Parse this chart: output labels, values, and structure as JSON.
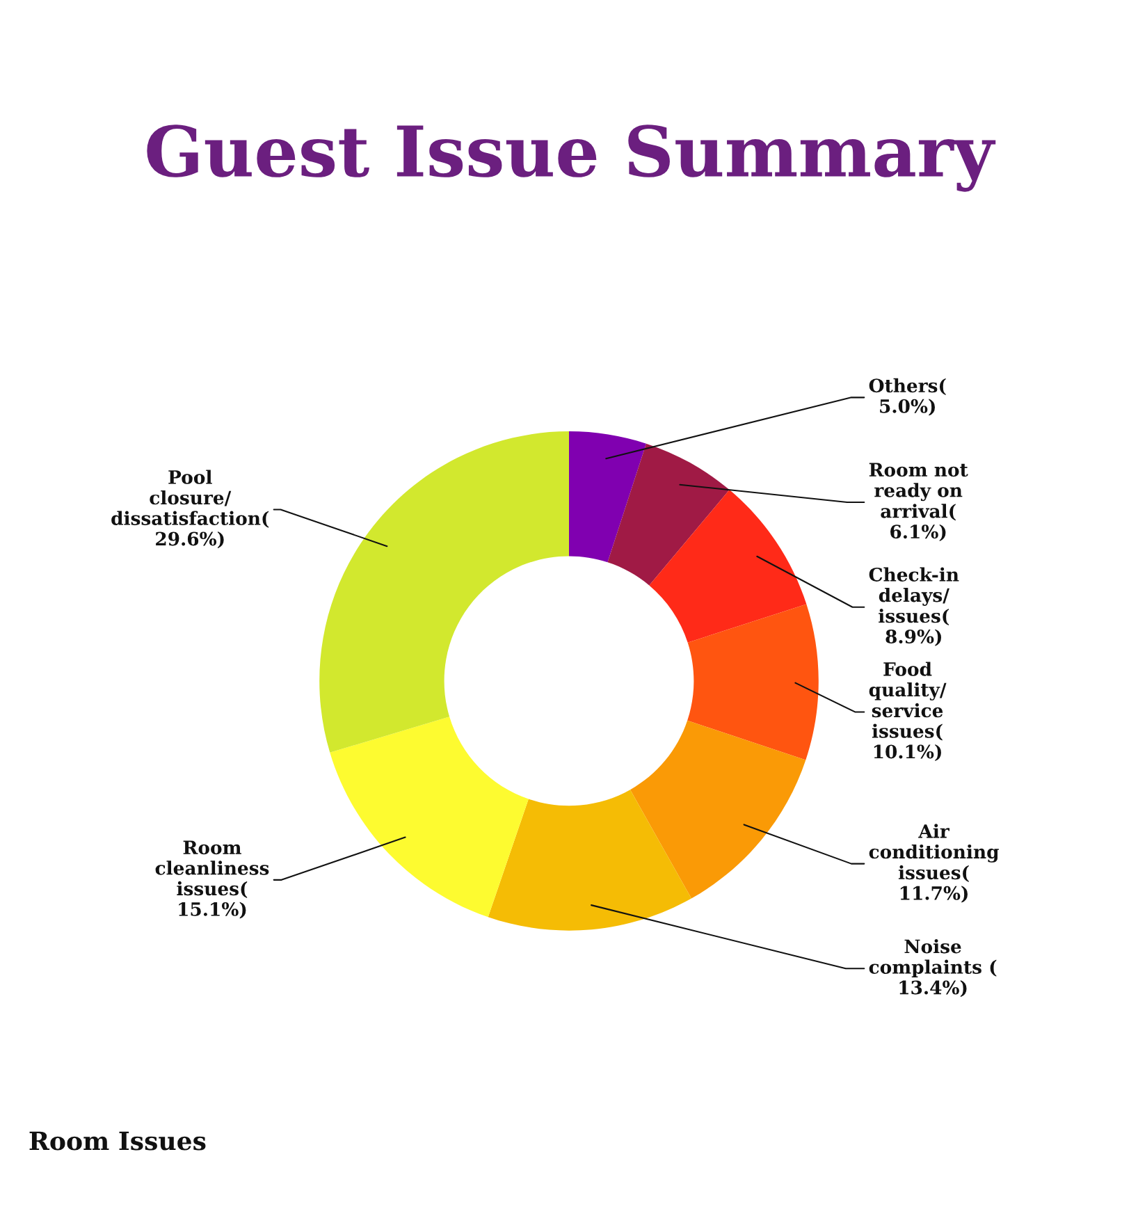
{
  "chart_data": {
    "type": "donut",
    "title": "Guest Issue Summary",
    "categories": [
      "Others( 5.0%)",
      "Room not ready on arrival( 6.1%)",
      "Check-in delays/issues( 8.9%)",
      "Food quality/service issues( 10.1%)",
      "Air conditioning issues( 11.7%)",
      "Noise complaints ( 13.4%)",
      "Room cleanliness issues( 15.1%)",
      "Pool closure/dissatisfaction( 29.6%)"
    ],
    "values": [
      5.0,
      6.1,
      8.9,
      10.1,
      11.7,
      13.4,
      15.1,
      29.6
    ],
    "colors": [
      "#8000b0",
      "#a01a45",
      "#ff2a18",
      "#ff5510",
      "#fa9a06",
      "#f5bc05",
      "#fdfb30",
      "#d2e82e"
    ],
    "annotations": [
      "Room Issues"
    ],
    "legend": false
  }
}
